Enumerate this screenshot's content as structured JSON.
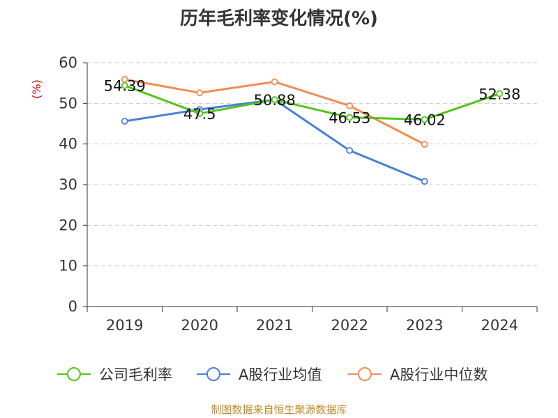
{
  "title": "历年毛利率变化情况(%)",
  "footer": "制图数据来自恒生聚源数据库",
  "chart_data": {
    "type": "line",
    "title": "历年毛利率变化情况(%)",
    "ylabel": "(%)",
    "xlabel": "",
    "categories": [
      "2019",
      "2020",
      "2021",
      "2022",
      "2023",
      "2024"
    ],
    "ylim": [
      0,
      60
    ],
    "yticks": [
      0,
      10,
      20,
      30,
      40,
      50,
      60
    ],
    "grid": true,
    "legend_position": "bottom",
    "series": [
      {
        "name": "公司毛利率",
        "color": "#52c41a",
        "values": [
          54.39,
          47.5,
          50.88,
          46.53,
          46.02,
          52.38
        ],
        "labels": [
          "54.39",
          "47.5",
          "50.88",
          "46.53",
          "46.02",
          "52.38"
        ]
      },
      {
        "name": "A股行业均值",
        "color": "#4a7fd9",
        "values": [
          45.6,
          48.5,
          50.9,
          38.4,
          30.8,
          null
        ],
        "labels": []
      },
      {
        "name": "A股行业中位数",
        "color": "#f28c52",
        "values": [
          55.9,
          52.6,
          55.3,
          49.4,
          39.9,
          null
        ],
        "labels": []
      }
    ]
  }
}
